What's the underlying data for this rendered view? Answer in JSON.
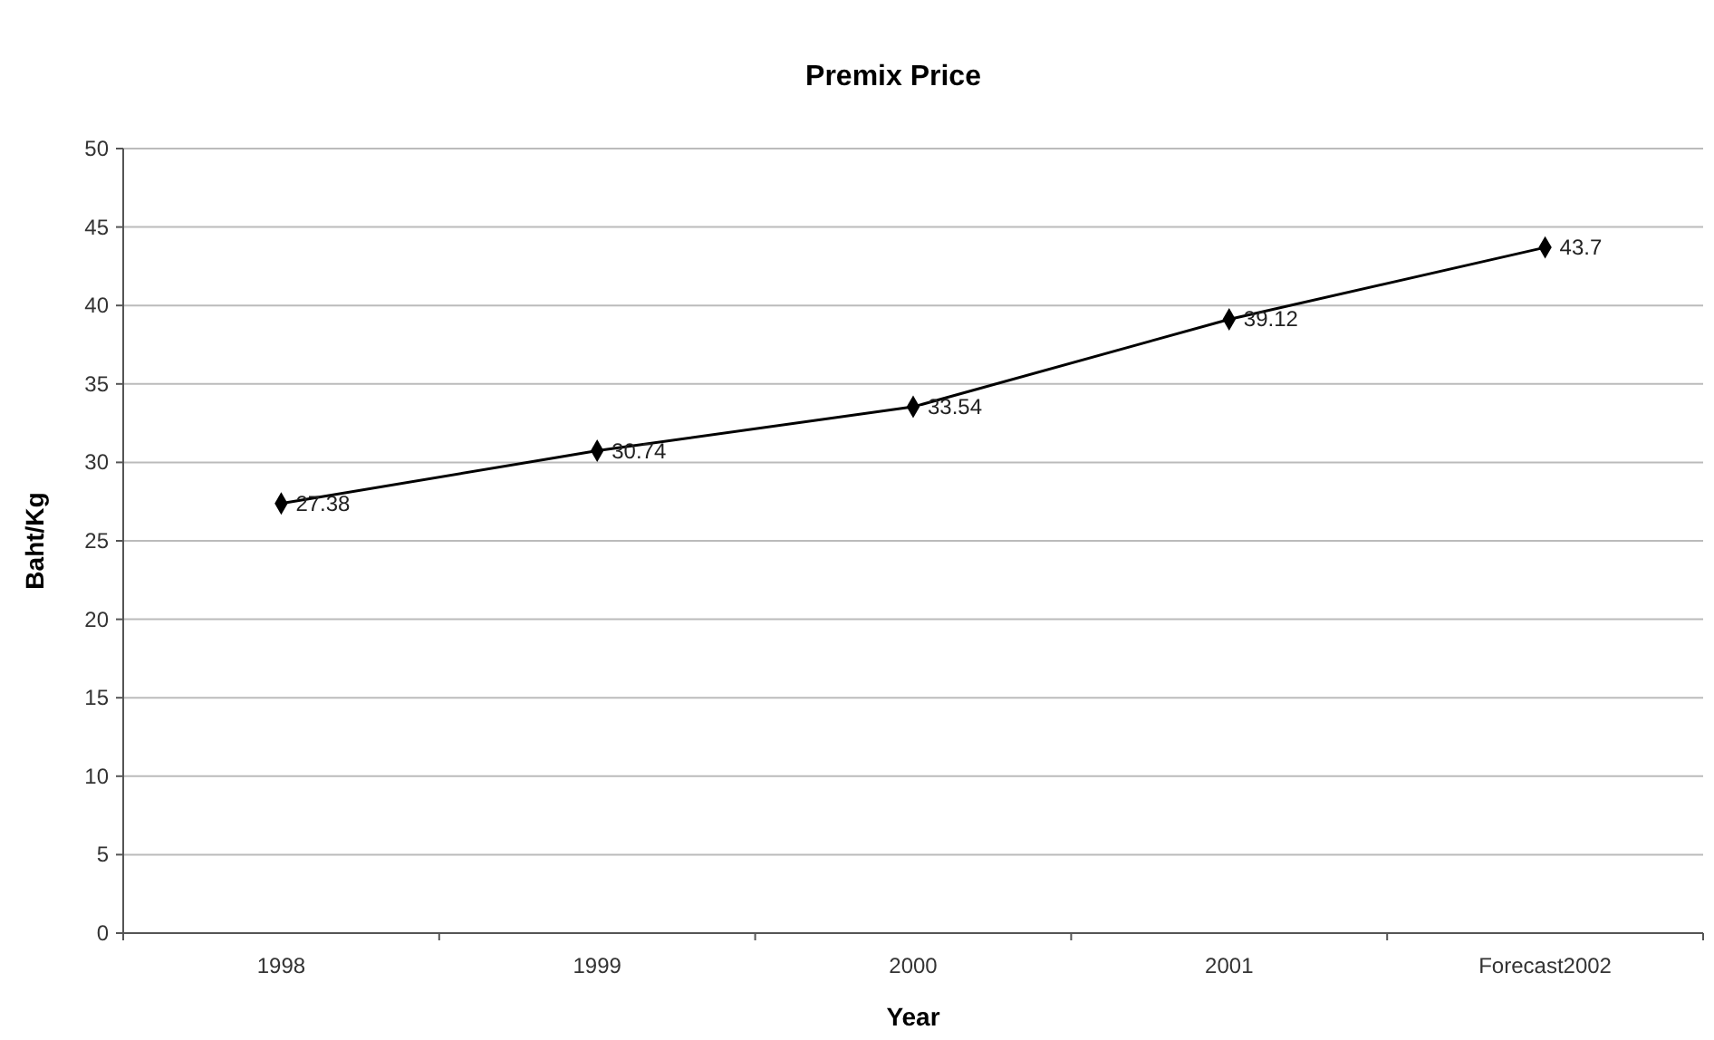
{
  "chart_data": {
    "type": "line",
    "title": "Premix Price",
    "xlabel": "Year",
    "ylabel": "Baht/Kg",
    "categories": [
      "1998",
      "1999",
      "2000",
      "2001",
      "Forecast2002"
    ],
    "series": [
      {
        "color": "#000000",
        "values": [
          27.38,
          30.74,
          33.54,
          39.12,
          43.7
        ]
      }
    ],
    "ylim": [
      0,
      50
    ],
    "yticks": [
      0,
      5,
      10,
      15,
      20,
      25,
      30,
      35,
      40,
      45,
      50
    ],
    "grid": "y",
    "marker": "diamond",
    "line_style": "solid",
    "data_labels": true
  }
}
